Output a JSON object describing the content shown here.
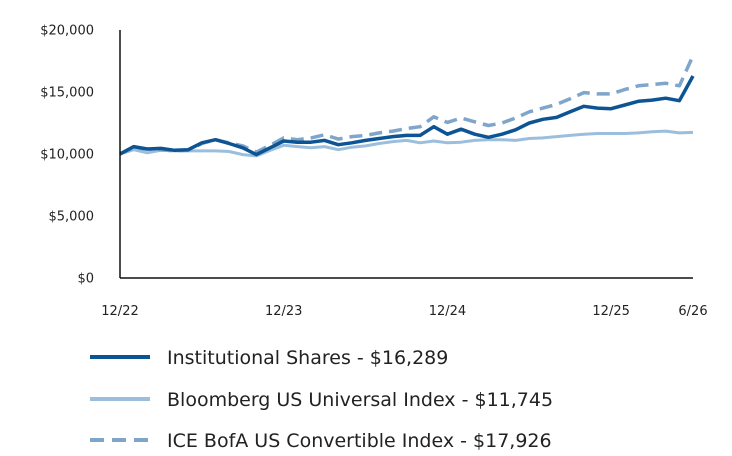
{
  "chart_data": {
    "type": "line",
    "title": "",
    "xlabel": "",
    "ylabel": "",
    "ylim": [
      0,
      20000
    ],
    "yticks": [
      0,
      5000,
      10000,
      15000,
      20000
    ],
    "ytick_labels": [
      "$0",
      "$5,000",
      "$10,000",
      "$15,000",
      "$20,000"
    ],
    "xticks": [
      0,
      12,
      24,
      36,
      42
    ],
    "xtick_labels": [
      "12/22",
      "12/23",
      "12/24",
      "12/25",
      "6/26"
    ],
    "grid": false,
    "legend_position": "bottom",
    "series": [
      {
        "name": "Institutional Shares - $16,289",
        "color": "#0d5494",
        "style": "solid",
        "x": [
          0,
          1,
          2,
          3,
          4,
          5,
          6,
          7,
          8,
          9,
          10,
          11,
          12,
          13,
          14,
          15,
          16,
          17,
          18,
          19,
          20,
          21,
          22,
          23,
          24,
          25,
          26,
          27,
          28,
          29,
          30,
          31,
          32,
          33,
          34,
          35,
          36,
          37,
          38,
          39,
          40,
          41,
          42
        ],
        "values": [
          10000,
          10600,
          10400,
          10450,
          10300,
          10350,
          10900,
          11150,
          10850,
          10500,
          9950,
          10500,
          11050,
          10950,
          10950,
          11100,
          10750,
          10900,
          11100,
          11250,
          11400,
          11500,
          11500,
          12200,
          11600,
          12000,
          11600,
          11350,
          11600,
          11950,
          12500,
          12800,
          12950,
          13400,
          13850,
          13700,
          13650,
          13950,
          14250,
          14350,
          14500,
          14300,
          16289
        ]
      },
      {
        "name": "Bloomberg US Universal Index - $11,745",
        "color": "#9cbedd",
        "style": "solid",
        "x": [
          0,
          1,
          2,
          3,
          4,
          5,
          6,
          7,
          8,
          9,
          10,
          11,
          12,
          13,
          14,
          15,
          16,
          17,
          18,
          19,
          20,
          21,
          22,
          23,
          24,
          25,
          26,
          27,
          28,
          29,
          30,
          31,
          32,
          33,
          34,
          35,
          36,
          37,
          38,
          39,
          40,
          41,
          42
        ],
        "values": [
          10000,
          10350,
          10100,
          10300,
          10250,
          10250,
          10250,
          10250,
          10200,
          9950,
          9850,
          10300,
          10700,
          10600,
          10500,
          10600,
          10350,
          10550,
          10650,
          10850,
          11000,
          11100,
          10900,
          11050,
          10900,
          10950,
          11100,
          11150,
          11150,
          11100,
          11250,
          11300,
          11400,
          11500,
          11600,
          11650,
          11650,
          11650,
          11700,
          11800,
          11850,
          11700,
          11745
        ]
      },
      {
        "name": "ICE BofA US Convertible Index - $17,926",
        "color": "#7fa5cb",
        "style": "dashed",
        "x": [
          0,
          1,
          2,
          3,
          4,
          5,
          6,
          7,
          8,
          9,
          10,
          11,
          12,
          13,
          14,
          15,
          16,
          17,
          18,
          19,
          20,
          21,
          22,
          23,
          24,
          25,
          26,
          27,
          28,
          29,
          30,
          31,
          32,
          33,
          34,
          35,
          36,
          37,
          38,
          39,
          40,
          41,
          42
        ],
        "values": [
          10000,
          10500,
          10400,
          10350,
          10250,
          10300,
          10850,
          11150,
          10900,
          10650,
          10150,
          10700,
          11300,
          11150,
          11300,
          11550,
          11200,
          11400,
          11500,
          11700,
          11850,
          12050,
          12200,
          13000,
          12550,
          12900,
          12600,
          12300,
          12500,
          12900,
          13400,
          13700,
          14000,
          14450,
          14950,
          14850,
          14850,
          15200,
          15500,
          15600,
          15700,
          15500,
          17926
        ]
      }
    ]
  }
}
